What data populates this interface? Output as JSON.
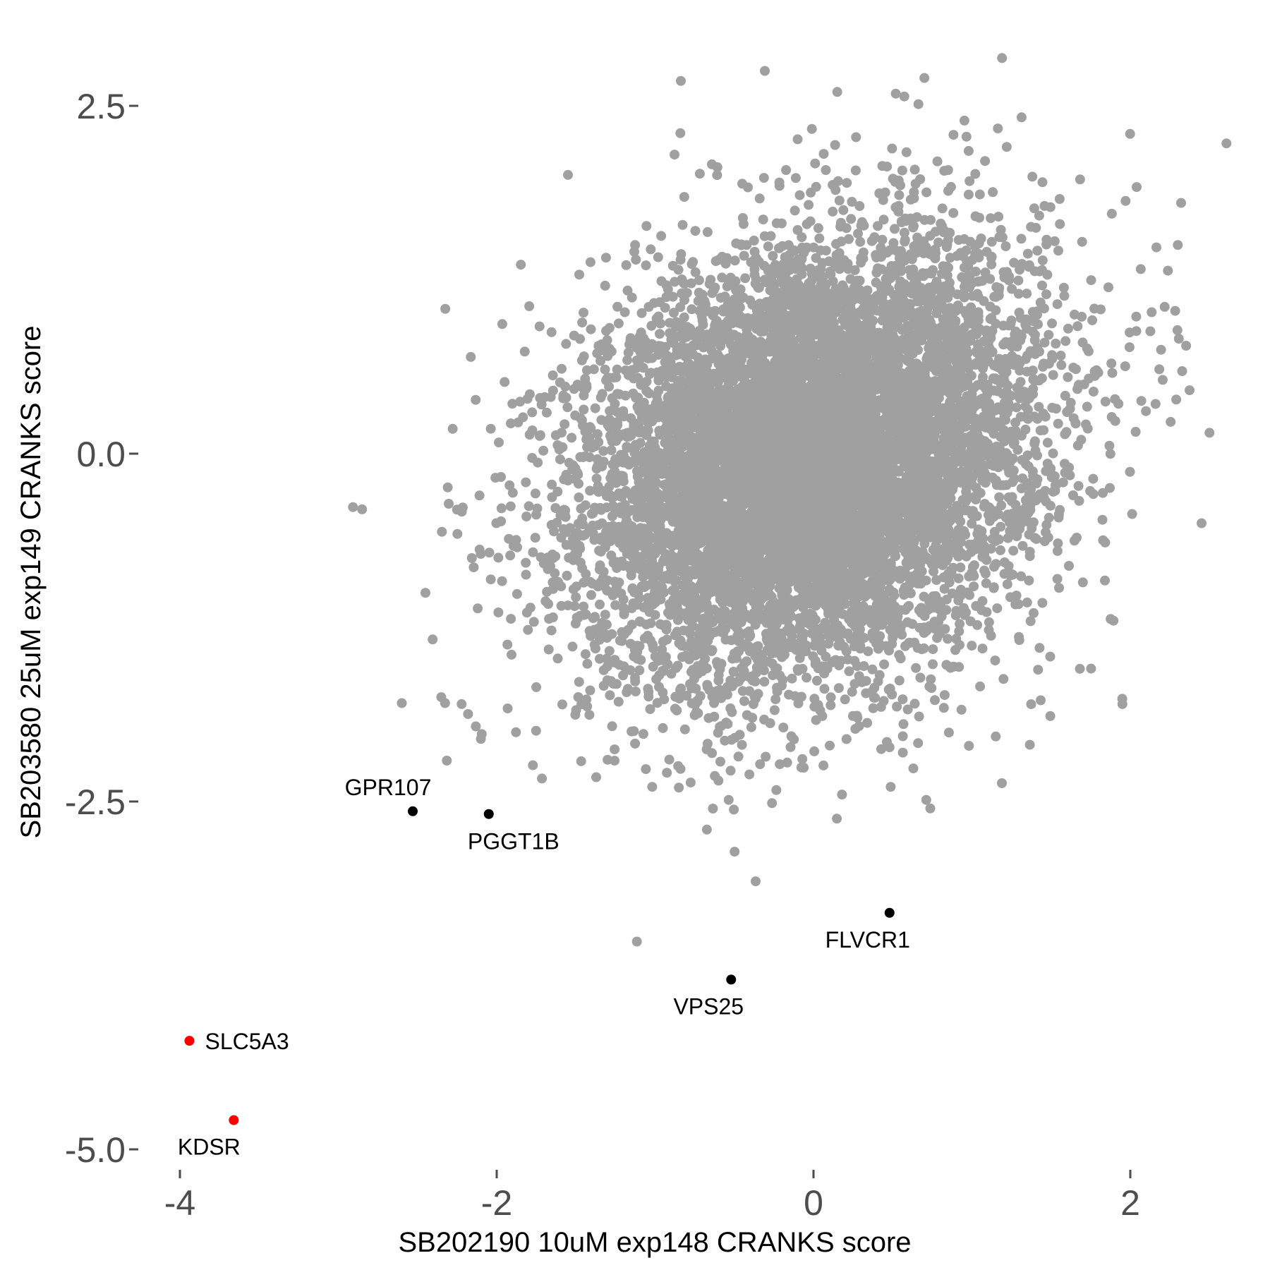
{
  "chart_data": {
    "type": "scatter",
    "title": "",
    "xlabel": "SB202190 10uM exp148 CRANKS score",
    "ylabel": "SB203580 25uM exp149 CRANKS score",
    "xlim": [
      -4.1,
      2.65
    ],
    "ylim": [
      -5.1,
      2.75
    ],
    "x_ticks": [
      -4,
      -2,
      0,
      2
    ],
    "y_ticks": [
      2.5,
      0.0,
      -2.5,
      -5.0
    ],
    "x_tick_labels": [
      "-4",
      "-2",
      "0",
      "2"
    ],
    "y_tick_labels": [
      "2.5",
      "0.0",
      "-2.5",
      "-5.0"
    ],
    "grid": false,
    "background_cloud": {
      "color": "#a0a0a0",
      "description_n": 9000,
      "center": [
        0.0,
        -0.05
      ],
      "sd": [
        0.72,
        0.78
      ],
      "correlation": 0.22
    },
    "background_outliers": [
      {
        "x": -2.85,
        "y": -0.4
      },
      {
        "x": -2.45,
        "y": -1.0
      },
      {
        "x": -2.35,
        "y": -1.75
      },
      {
        "x": -2.1,
        "y": -2.05
      },
      {
        "x": 0.7,
        "y": 2.7
      },
      {
        "x": 0.15,
        "y": 2.6
      },
      {
        "x": 2.5,
        "y": 0.15
      },
      {
        "x": 2.45,
        "y": -0.5
      },
      {
        "x": 1.95,
        "y": -1.8
      },
      {
        "x": -0.85,
        "y": -2.4
      },
      {
        "x": -0.6,
        "y": -2.35
      },
      {
        "x": 0.18,
        "y": -2.45
      },
      {
        "x": -1.3,
        "y": -2.2
      },
      {
        "x": 2.3,
        "y": 1.5
      }
    ],
    "series": [
      {
        "color": "#000000",
        "points": [
          {
            "label": "GPR107",
            "x": -2.53,
            "y": -2.57
          },
          {
            "label": "PGGT1B",
            "x": -2.05,
            "y": -2.59
          },
          {
            "label": "FLVCR1",
            "x": 0.48,
            "y": -3.3
          },
          {
            "label": "VPS25",
            "x": -0.52,
            "y": -3.78
          }
        ]
      },
      {
        "color": "#ff0000",
        "points": [
          {
            "label": "SLC5A3",
            "x": -3.94,
            "y": -4.22
          },
          {
            "label": "KDSR",
            "x": -3.66,
            "y": -4.79
          }
        ]
      }
    ]
  }
}
